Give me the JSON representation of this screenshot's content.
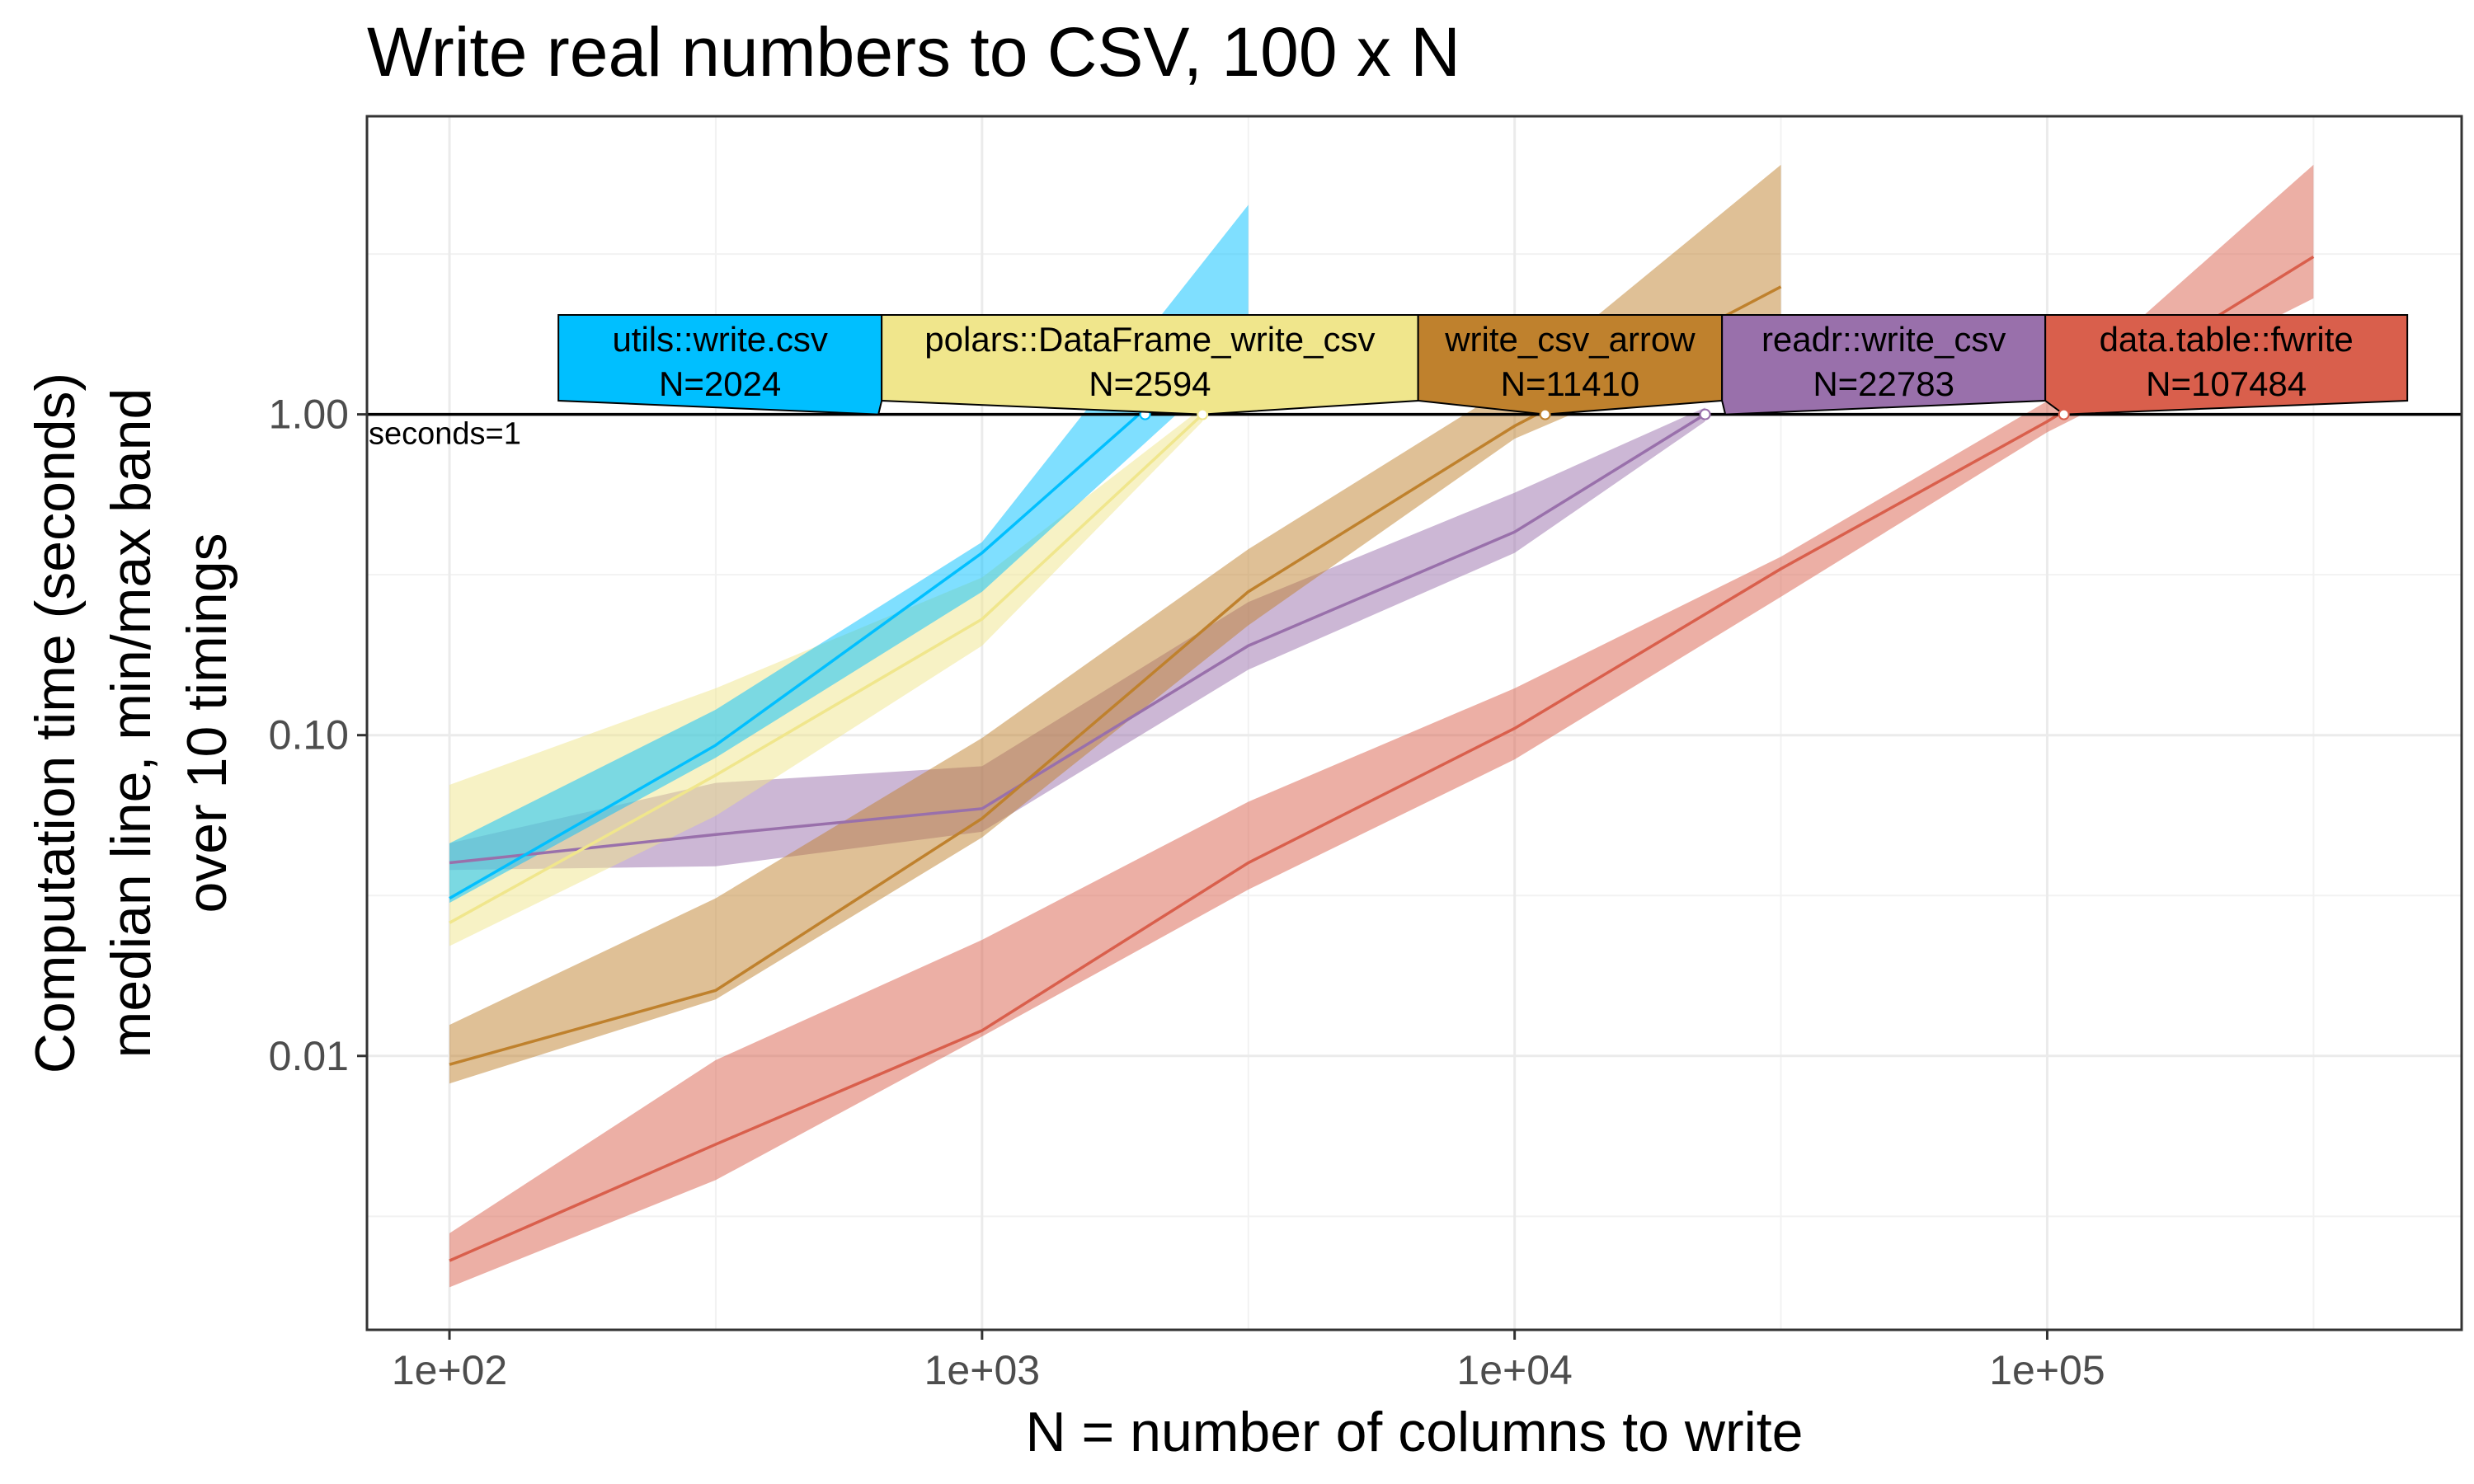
{
  "chart_data": {
    "type": "line",
    "title": "Write real numbers to CSV, 100 x N",
    "xlabel": "N = number of columns to write",
    "ylabel": [
      "Computation time (seconds)",
      "median line, min/max band",
      "over 10 timings"
    ],
    "x_scale": "log10",
    "y_scale": "log10",
    "xlim": [
      70,
      600000
    ],
    "ylim": [
      0.0014,
      8.5
    ],
    "x_ticks": [
      100,
      1000,
      10000,
      100000
    ],
    "x_tick_labels": [
      "1e+02",
      "1e+03",
      "1e+04",
      "1e+05"
    ],
    "y_ticks": [
      0.01,
      0.1,
      1
    ],
    "y_tick_labels": [
      "0.01",
      "0.10",
      "1.00"
    ],
    "grid": true,
    "reference_line": {
      "y": 1,
      "label": "seconds=1"
    },
    "series": [
      {
        "name": "data.table::fwrite",
        "color": "#D95F4C",
        "crossing_label": "N=107484",
        "crossing_x": 107484,
        "x": [
          100,
          316,
          1000,
          3162,
          10000,
          31623,
          100000,
          316228
        ],
        "median": [
          0.0023,
          0.0053,
          0.012,
          0.04,
          0.105,
          0.33,
          0.95,
          3.1
        ],
        "min": [
          0.0019,
          0.0041,
          0.0115,
          0.033,
          0.084,
          0.27,
          0.88,
          2.3
        ],
        "max": [
          0.0028,
          0.0097,
          0.023,
          0.062,
          0.14,
          0.36,
          1.1,
          6.0
        ]
      },
      {
        "name": "readr::write_csv",
        "color": "#9970AB",
        "crossing_label": "N=22783",
        "crossing_x": 22783,
        "x": [
          100,
          316,
          1000,
          3162,
          10000,
          22783
        ],
        "median": [
          0.04,
          0.049,
          0.059,
          0.19,
          0.43,
          1.0
        ],
        "min": [
          0.038,
          0.039,
          0.05,
          0.16,
          0.37,
          0.95
        ],
        "max": [
          0.046,
          0.071,
          0.08,
          0.26,
          0.57,
          1.05
        ]
      },
      {
        "name": "write_csv_arrow",
        "color": "#BF812D",
        "crossing_label": "N=11410",
        "crossing_x": 11410,
        "x": [
          100,
          316,
          1000,
          3162,
          10000,
          31623
        ],
        "median": [
          0.0094,
          0.016,
          0.055,
          0.28,
          0.92,
          2.5
        ],
        "min": [
          0.0082,
          0.015,
          0.048,
          0.22,
          0.84,
          1.9
        ],
        "max": [
          0.0125,
          0.031,
          0.098,
          0.38,
          1.25,
          6.0
        ]
      },
      {
        "name": "polars::DataFrame_write_csv",
        "color": "#F0E68C",
        "crossing_label": "N=2594",
        "crossing_x": 2594,
        "x": [
          100,
          316,
          1000,
          2594
        ],
        "median": [
          0.026,
          0.075,
          0.23,
          1.0
        ],
        "min": [
          0.022,
          0.056,
          0.19,
          0.95
        ],
        "max": [
          0.07,
          0.14,
          0.31,
          1.05
        ]
      },
      {
        "name": "utils::write.csv",
        "color": "#00BFFF",
        "crossing_label": "N=2024",
        "crossing_x": 2024,
        "x": [
          100,
          316,
          1000,
          3162
        ],
        "median": [
          0.031,
          0.093,
          0.37,
          2.0
        ],
        "min": [
          0.03,
          0.085,
          0.28,
          1.6
        ],
        "max": [
          0.046,
          0.12,
          0.4,
          4.5
        ]
      }
    ]
  }
}
